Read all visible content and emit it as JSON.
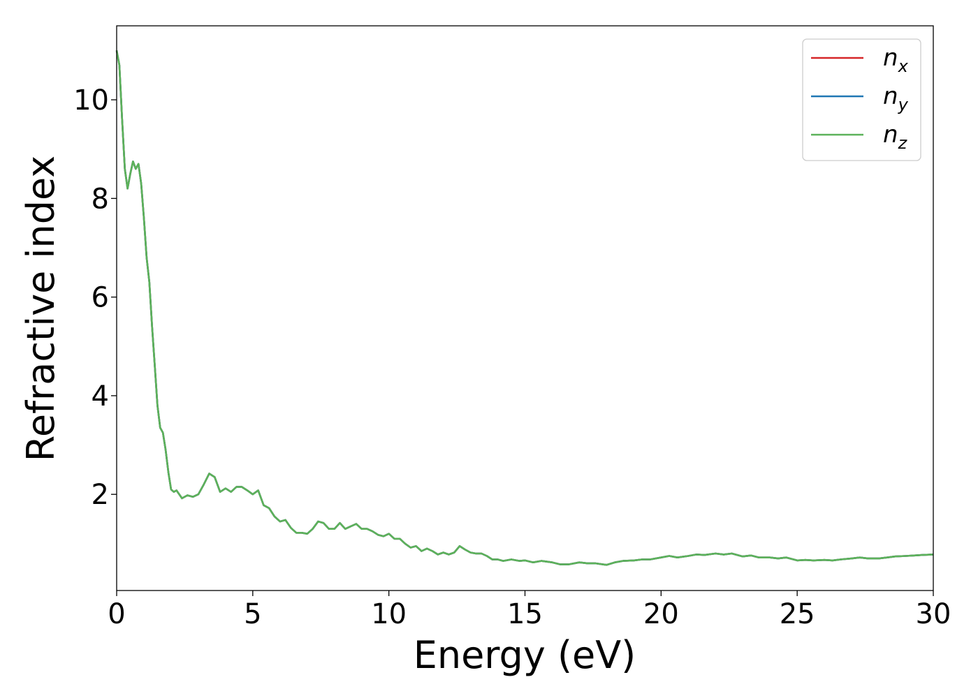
{
  "chart_data": {
    "type": "line",
    "title": "",
    "xlabel": "Energy (eV)",
    "ylabel": "Refractive index",
    "xlim": [
      0,
      30
    ],
    "ylim": [
      0.05,
      11.5
    ],
    "xticks": [
      "0",
      "5",
      "10",
      "15",
      "20",
      "25",
      "30"
    ],
    "yticks": [
      "2",
      "4",
      "6",
      "8",
      "10"
    ],
    "grid": false,
    "legend_position": "top-right",
    "x": [
      0,
      0.1,
      0.2,
      0.3,
      0.4,
      0.5,
      0.6,
      0.7,
      0.8,
      0.9,
      1.0,
      1.1,
      1.2,
      1.3,
      1.4,
      1.5,
      1.6,
      1.7,
      1.8,
      1.9,
      2.0,
      2.1,
      2.2,
      2.4,
      2.6,
      2.8,
      3.0,
      3.2,
      3.4,
      3.6,
      3.8,
      4.0,
      4.2,
      4.4,
      4.6,
      4.8,
      5.0,
      5.2,
      5.4,
      5.6,
      5.8,
      6.0,
      6.2,
      6.4,
      6.6,
      6.8,
      7.0,
      7.2,
      7.4,
      7.6,
      7.8,
      8.0,
      8.2,
      8.4,
      8.6,
      8.8,
      9.0,
      9.2,
      9.4,
      9.6,
      9.8,
      10.0,
      10.2,
      10.4,
      10.6,
      10.8,
      11.0,
      11.2,
      11.4,
      11.6,
      11.8,
      12.0,
      12.2,
      12.4,
      12.6,
      12.8,
      13.0,
      13.2,
      13.4,
      13.6,
      13.8,
      14.0,
      14.2,
      14.5,
      14.8,
      15.0,
      15.3,
      15.6,
      16.0,
      16.3,
      16.6,
      17.0,
      17.3,
      17.6,
      18.0,
      18.3,
      18.6,
      19.0,
      19.3,
      19.6,
      20.0,
      20.3,
      20.6,
      21.0,
      21.3,
      21.6,
      22.0,
      22.3,
      22.6,
      23.0,
      23.3,
      23.6,
      24.0,
      24.3,
      24.6,
      25.0,
      25.3,
      25.6,
      26.0,
      26.3,
      26.6,
      27.0,
      27.3,
      27.6,
      28.0,
      28.3,
      28.6,
      29.0,
      29.3,
      29.6,
      30.0
    ],
    "series": [
      {
        "name": "n_x",
        "color": "#d62728",
        "values": [
          11.0,
          10.7,
          9.6,
          8.6,
          8.2,
          8.5,
          8.75,
          8.6,
          8.7,
          8.3,
          7.6,
          6.8,
          6.3,
          5.4,
          4.6,
          3.8,
          3.35,
          3.25,
          2.9,
          2.45,
          2.1,
          2.05,
          2.08,
          1.92,
          1.98,
          1.95,
          2.0,
          2.2,
          2.42,
          2.35,
          2.05,
          2.12,
          2.05,
          2.15,
          2.15,
          2.08,
          2.0,
          2.08,
          1.78,
          1.72,
          1.55,
          1.45,
          1.48,
          1.32,
          1.22,
          1.22,
          1.2,
          1.3,
          1.45,
          1.42,
          1.3,
          1.3,
          1.42,
          1.3,
          1.35,
          1.4,
          1.3,
          1.3,
          1.25,
          1.18,
          1.15,
          1.2,
          1.1,
          1.1,
          1.0,
          0.92,
          0.95,
          0.85,
          0.9,
          0.85,
          0.78,
          0.82,
          0.78,
          0.82,
          0.95,
          0.88,
          0.82,
          0.8,
          0.8,
          0.75,
          0.68,
          0.68,
          0.65,
          0.68,
          0.65,
          0.66,
          0.62,
          0.65,
          0.62,
          0.58,
          0.58,
          0.62,
          0.6,
          0.6,
          0.57,
          0.62,
          0.65,
          0.66,
          0.68,
          0.68,
          0.72,
          0.75,
          0.72,
          0.75,
          0.78,
          0.77,
          0.8,
          0.78,
          0.8,
          0.74,
          0.76,
          0.72,
          0.72,
          0.7,
          0.72,
          0.66,
          0.67,
          0.66,
          0.67,
          0.66,
          0.68,
          0.7,
          0.72,
          0.7,
          0.7,
          0.72,
          0.74,
          0.75,
          0.76,
          0.77,
          0.78
        ]
      },
      {
        "name": "n_y",
        "color": "#1f77b4",
        "values": [
          11.0,
          10.7,
          9.6,
          8.6,
          8.2,
          8.5,
          8.75,
          8.6,
          8.7,
          8.3,
          7.6,
          6.8,
          6.3,
          5.4,
          4.6,
          3.8,
          3.35,
          3.25,
          2.9,
          2.45,
          2.1,
          2.05,
          2.08,
          1.92,
          1.98,
          1.95,
          2.0,
          2.2,
          2.42,
          2.35,
          2.05,
          2.12,
          2.05,
          2.15,
          2.15,
          2.08,
          2.0,
          2.08,
          1.78,
          1.72,
          1.55,
          1.45,
          1.48,
          1.32,
          1.22,
          1.22,
          1.2,
          1.3,
          1.45,
          1.42,
          1.3,
          1.3,
          1.42,
          1.3,
          1.35,
          1.4,
          1.3,
          1.3,
          1.25,
          1.18,
          1.15,
          1.2,
          1.1,
          1.1,
          1.0,
          0.92,
          0.95,
          0.85,
          0.9,
          0.85,
          0.78,
          0.82,
          0.78,
          0.82,
          0.95,
          0.88,
          0.82,
          0.8,
          0.8,
          0.75,
          0.68,
          0.68,
          0.65,
          0.68,
          0.65,
          0.66,
          0.62,
          0.65,
          0.62,
          0.58,
          0.58,
          0.62,
          0.6,
          0.6,
          0.57,
          0.62,
          0.65,
          0.66,
          0.68,
          0.68,
          0.72,
          0.75,
          0.72,
          0.75,
          0.78,
          0.77,
          0.8,
          0.78,
          0.8,
          0.74,
          0.76,
          0.72,
          0.72,
          0.7,
          0.72,
          0.66,
          0.67,
          0.66,
          0.67,
          0.66,
          0.68,
          0.7,
          0.72,
          0.7,
          0.7,
          0.72,
          0.74,
          0.75,
          0.76,
          0.77,
          0.78
        ]
      },
      {
        "name": "n_z",
        "color": "#5cb25a",
        "values": [
          11.0,
          10.7,
          9.6,
          8.6,
          8.2,
          8.5,
          8.75,
          8.6,
          8.7,
          8.3,
          7.6,
          6.8,
          6.3,
          5.4,
          4.6,
          3.8,
          3.35,
          3.25,
          2.9,
          2.45,
          2.1,
          2.05,
          2.08,
          1.92,
          1.98,
          1.95,
          2.0,
          2.2,
          2.42,
          2.35,
          2.05,
          2.12,
          2.05,
          2.15,
          2.15,
          2.08,
          2.0,
          2.08,
          1.78,
          1.72,
          1.55,
          1.45,
          1.48,
          1.32,
          1.22,
          1.22,
          1.2,
          1.3,
          1.45,
          1.42,
          1.3,
          1.3,
          1.42,
          1.3,
          1.35,
          1.4,
          1.3,
          1.3,
          1.25,
          1.18,
          1.15,
          1.2,
          1.1,
          1.1,
          1.0,
          0.92,
          0.95,
          0.85,
          0.9,
          0.85,
          0.78,
          0.82,
          0.78,
          0.82,
          0.95,
          0.88,
          0.82,
          0.8,
          0.8,
          0.75,
          0.68,
          0.68,
          0.65,
          0.68,
          0.65,
          0.66,
          0.62,
          0.65,
          0.62,
          0.58,
          0.58,
          0.62,
          0.6,
          0.6,
          0.57,
          0.62,
          0.65,
          0.66,
          0.68,
          0.68,
          0.72,
          0.75,
          0.72,
          0.75,
          0.78,
          0.77,
          0.8,
          0.78,
          0.8,
          0.74,
          0.76,
          0.72,
          0.72,
          0.7,
          0.72,
          0.66,
          0.67,
          0.66,
          0.67,
          0.66,
          0.68,
          0.7,
          0.72,
          0.7,
          0.7,
          0.72,
          0.74,
          0.75,
          0.76,
          0.77,
          0.78
        ]
      }
    ],
    "legend": [
      {
        "base": "n",
        "sub": "x",
        "color": "#d62728"
      },
      {
        "base": "n",
        "sub": "y",
        "color": "#1f77b4"
      },
      {
        "base": "n",
        "sub": "z",
        "color": "#5cb25a"
      }
    ]
  }
}
